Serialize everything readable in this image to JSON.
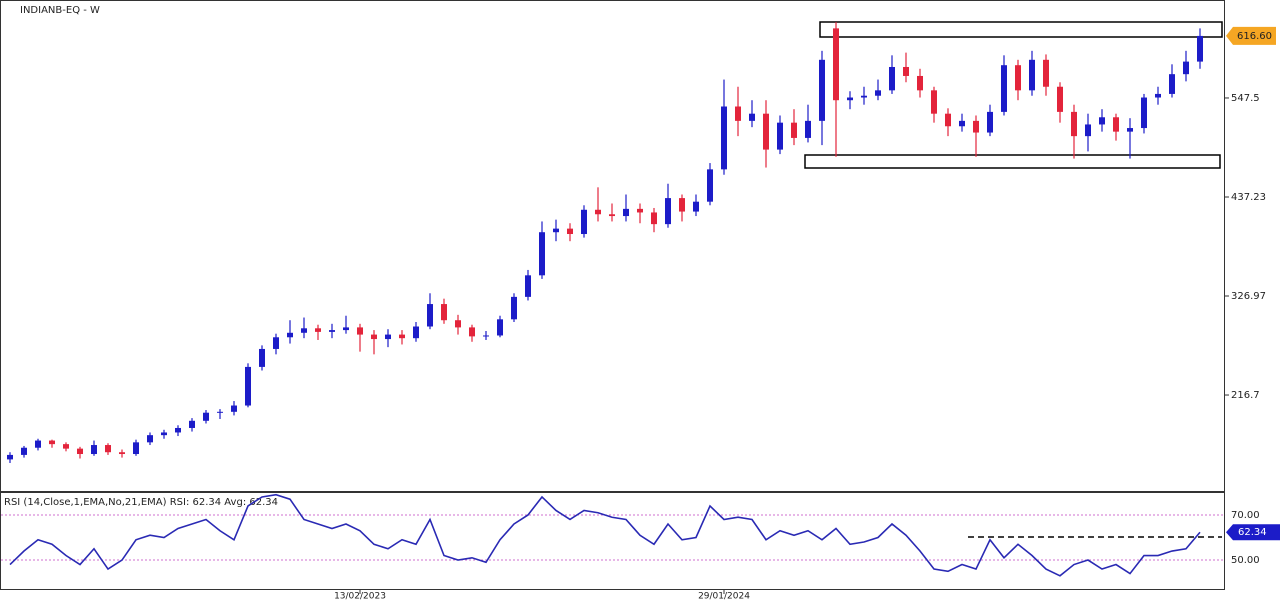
{
  "chart_data": [
    {
      "type": "candlestick",
      "title": "INDIANB-EQ - W",
      "open": [
        145,
        150,
        158,
        166,
        162,
        157,
        151,
        161,
        153,
        151,
        164,
        172,
        175,
        180,
        188,
        197,
        198,
        205,
        248,
        268,
        281,
        286,
        291,
        287,
        289,
        292,
        284,
        279,
        284,
        280,
        293,
        318,
        300,
        292,
        282,
        283,
        301,
        326,
        350,
        398,
        402,
        396,
        423,
        418,
        416,
        424,
        420,
        407,
        436,
        421,
        432,
        468,
        538,
        522,
        530,
        490,
        520,
        503,
        522,
        625,
        545,
        548,
        550,
        556,
        582,
        572,
        556,
        530,
        516,
        522,
        509,
        532,
        584,
        556,
        590,
        560,
        532,
        505,
        518,
        526,
        510,
        514,
        548,
        552,
        574,
        588
      ],
      "high": [
        153,
        160,
        168,
        167,
        164,
        159,
        166,
        163,
        156,
        167,
        175,
        178,
        183,
        191,
        200,
        201,
        210,
        252,
        272,
        285,
        300,
        303,
        295,
        296,
        305,
        296,
        289,
        290,
        289,
        298,
        330,
        324,
        306,
        295,
        288,
        305,
        330,
        356,
        410,
        412,
        408,
        428,
        448,
        430,
        440,
        430,
        425,
        452,
        440,
        440,
        475,
        568,
        560,
        545,
        545,
        528,
        535,
        540,
        600,
        632,
        555,
        560,
        568,
        595,
        598,
        580,
        560,
        536,
        530,
        528,
        540,
        595,
        590,
        600,
        596,
        565,
        540,
        530,
        535,
        530,
        525,
        552,
        560,
        585,
        600,
        625
      ],
      "low": [
        141,
        147,
        155,
        158,
        154,
        146,
        149,
        150,
        147,
        149,
        161,
        168,
        171,
        176,
        185,
        190,
        194,
        203,
        244,
        262,
        274,
        280,
        278,
        280,
        285,
        265,
        262,
        270,
        273,
        276,
        290,
        296,
        284,
        276,
        278,
        281,
        298,
        322,
        346,
        388,
        388,
        392,
        410,
        410,
        410,
        408,
        398,
        403,
        410,
        416,
        428,
        462,
        505,
        515,
        470,
        485,
        495,
        498,
        495,
        482,
        535,
        540,
        545,
        552,
        565,
        548,
        520,
        505,
        510,
        482,
        505,
        528,
        545,
        550,
        550,
        520,
        480,
        488,
        510,
        500,
        480,
        508,
        540,
        548,
        566,
        580
      ],
      "close": [
        150,
        158,
        166,
        162,
        157,
        151,
        161,
        153,
        151,
        164,
        172,
        175,
        180,
        188,
        197,
        198,
        205,
        248,
        268,
        281,
        286,
        291,
        287,
        289,
        292,
        284,
        279,
        284,
        280,
        293,
        318,
        300,
        292,
        282,
        283,
        301,
        326,
        350,
        398,
        402,
        396,
        423,
        418,
        416,
        424,
        420,
        407,
        436,
        421,
        432,
        468,
        538,
        522,
        530,
        490,
        520,
        503,
        522,
        590,
        545,
        548,
        550,
        556,
        582,
        572,
        556,
        530,
        516,
        522,
        509,
        532,
        584,
        556,
        590,
        560,
        532,
        505,
        518,
        526,
        510,
        514,
        548,
        552,
        574,
        588,
        616.6
      ],
      "last_label": "616.60",
      "up_color": "#1c1cc8",
      "down_color": "#e3243b",
      "ylim": [
        108.7,
        656.6
      ],
      "yticks": [
        216.7,
        326.97,
        437.23,
        547.5
      ]
    },
    {
      "type": "line",
      "title": "RSI (14,Close,1,EMA,No,21,EMA) RSI: 62.34 Avg: 62.34",
      "values": [
        48,
        54,
        59,
        57,
        52,
        48,
        55,
        46,
        50,
        59,
        61,
        60,
        64,
        66,
        68,
        63,
        59,
        74,
        78,
        79,
        77,
        68,
        66,
        64,
        66,
        63,
        57,
        55,
        59,
        57,
        68,
        52,
        50,
        51,
        49,
        59,
        66,
        70,
        78,
        72,
        68,
        72,
        71,
        69,
        68,
        61,
        57,
        66,
        59,
        60,
        74,
        68,
        69,
        68,
        59,
        63,
        61,
        63,
        59,
        64,
        57,
        58,
        60,
        66,
        61,
        54,
        46,
        45,
        48,
        46,
        59,
        51,
        57,
        52,
        46,
        43,
        48,
        50,
        46,
        48,
        44,
        52,
        52,
        54,
        55,
        62.34
      ],
      "categories": [
        null,
        null,
        null,
        null,
        null,
        null,
        null,
        null,
        null,
        null,
        null,
        null,
        null,
        null,
        null,
        null,
        null,
        null,
        null,
        null,
        null,
        null,
        null,
        null,
        null,
        "13/02/2023",
        null,
        null,
        null,
        null,
        null,
        null,
        null,
        null,
        null,
        null,
        null,
        null,
        null,
        null,
        null,
        null,
        null,
        null,
        null,
        null,
        null,
        null,
        null,
        null,
        null,
        "29/01/2024",
        null,
        null,
        null,
        null,
        null,
        null,
        null,
        null,
        null,
        null,
        null,
        null,
        null,
        null,
        null,
        null,
        null,
        null,
        null,
        null,
        null,
        null,
        null,
        null,
        null,
        null,
        null,
        null,
        null,
        null,
        null,
        null,
        null,
        null
      ],
      "color": "#2a2ab4",
      "grid_color": "#c040c0",
      "ylim": [
        36.7,
        80.2
      ],
      "yticks": [
        {
          "value": 70,
          "label": "70.00"
        },
        {
          "value": 50,
          "label": "50.00"
        }
      ]
    }
  ]
}
